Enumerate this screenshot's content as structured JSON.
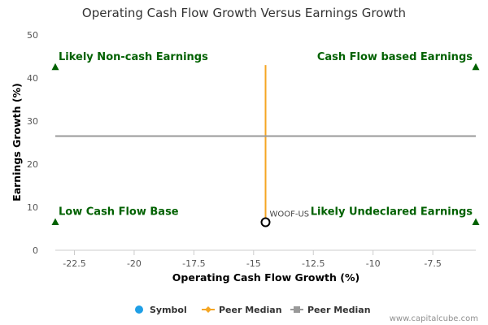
{
  "chart_data": {
    "type": "scatter",
    "title": "Operating Cash Flow Growth Versus Earnings Growth",
    "xlabel": "Operating Cash Flow Growth (%)",
    "ylabel": "Earnings Growth (%)",
    "xlim": [
      -23.3,
      -5.7
    ],
    "ylim": [
      0,
      50
    ],
    "xticks": [
      -22.5,
      -20,
      -17.5,
      -15,
      -12.5,
      -10,
      -7.5
    ],
    "xtick_labels": [
      "-22.5",
      "-20",
      "-17.5",
      "-15",
      "-12.5",
      "-10",
      "-7.5"
    ],
    "yticks": [
      0,
      10,
      20,
      30,
      40,
      50
    ],
    "ytick_labels": [
      "0",
      "10",
      "20",
      "30",
      "40",
      "50"
    ],
    "grid": false,
    "legend_position": "bottom",
    "colors": {
      "symbol": "#1f9fe6",
      "peer_x": "#f5a623",
      "peer_y": "#999999",
      "quadrant": "#006100",
      "point_stroke": "#000000"
    },
    "series": [
      {
        "name": "Symbol",
        "kind": "point",
        "points": [
          {
            "x": -14.5,
            "y": 6.5,
            "label": "WOOF-US"
          }
        ]
      },
      {
        "name": "Peer Median",
        "kind": "vertical-line",
        "x": -14.5,
        "y_range": [
          6.5,
          43
        ]
      },
      {
        "name": "Peer Median",
        "kind": "horizontal-line",
        "y": 26.5,
        "x_range": [
          -23.3,
          -5.7
        ]
      }
    ],
    "quadrants": [
      {
        "label": "Likely Non-cash Earnings",
        "marker": {
          "x": -23.3,
          "y": 42.5
        },
        "anchor": "start"
      },
      {
        "label": "Cash Flow based Earnings",
        "marker": {
          "x": -5.7,
          "y": 42.5
        },
        "anchor": "end"
      },
      {
        "label": "Low Cash Flow Base",
        "marker": {
          "x": -23.3,
          "y": 6.5
        },
        "anchor": "start"
      },
      {
        "label": "Likely Undeclared Earnings",
        "marker": {
          "x": -5.7,
          "y": 6.5
        },
        "anchor": "end"
      }
    ],
    "legend": [
      {
        "label": "Symbol",
        "icon": "circle-icon"
      },
      {
        "label": "Peer Median",
        "icon": "diamond-line-icon"
      },
      {
        "label": "Peer Median",
        "icon": "square-line-icon"
      }
    ]
  },
  "credit": "www.capitalcube.com"
}
